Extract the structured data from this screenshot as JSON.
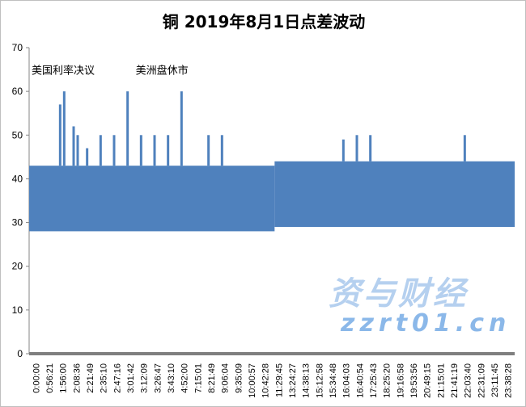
{
  "chart_data": {
    "type": "area",
    "title": "铜 2019年8月1日点差波动",
    "xlabel": "",
    "ylabel": "",
    "ylim": [
      0,
      70
    ],
    "yticks": [
      0,
      10,
      20,
      30,
      40,
      50,
      60,
      70
    ],
    "grid": false,
    "legend": "none",
    "color": "#4f81bd",
    "categories": [
      "0:00:00",
      "0:56:21",
      "1:56:00",
      "2:08:36",
      "2:21:49",
      "2:35:10",
      "2:47:16",
      "3:01:42",
      "3:12:09",
      "3:26:47",
      "3:43:10",
      "4:52:00",
      "7:15:01",
      "8:21:49",
      "9:06:04",
      "9:35:09",
      "10:00:57",
      "10:42:28",
      "11:29:45",
      "13:24:27",
      "14:38:13",
      "15:12:58",
      "15:34:48",
      "16:04:03",
      "16:40:54",
      "17:25:43",
      "18:25:20",
      "19:16:58",
      "19:53:56",
      "20:49:15",
      "21:15:01",
      "21:41:19",
      "22:03:40",
      "22:31:09",
      "23:11:45",
      "23:38:28"
    ],
    "band_segments": [
      {
        "from": "0:00:00",
        "to": "11:29:45",
        "low": 28,
        "high": 43
      },
      {
        "from": "11:29:45",
        "to": "23:38:28",
        "low": 29,
        "high": 44
      }
    ],
    "spikes": [
      {
        "near": "1:56:00",
        "value": 57
      },
      {
        "near": "1:56:00",
        "value": 60
      },
      {
        "near": "2:08:36",
        "value": 52
      },
      {
        "near": "2:08:36",
        "value": 50
      },
      {
        "near": "2:21:49",
        "value": 47
      },
      {
        "near": "2:35:10",
        "value": 50
      },
      {
        "near": "2:47:16",
        "value": 50
      },
      {
        "near": "3:01:42",
        "value": 60
      },
      {
        "near": "3:12:09",
        "value": 50
      },
      {
        "near": "3:26:47",
        "value": 50
      },
      {
        "near": "3:43:10",
        "value": 50
      },
      {
        "near": "4:52:00",
        "value": 60
      },
      {
        "near": "8:21:49",
        "value": 50
      },
      {
        "near": "9:06:04",
        "value": 50
      },
      {
        "near": "16:04:03",
        "value": 49
      },
      {
        "near": "16:40:54",
        "value": 50
      },
      {
        "near": "17:25:43",
        "value": 50
      },
      {
        "near": "22:03:40",
        "value": 50
      }
    ],
    "annotations": [
      {
        "text": "美国利率决议",
        "at": "0:00:00",
        "y": 64
      },
      {
        "text": "美洲盘休市",
        "at": "3:12:09",
        "y": 64
      }
    ]
  },
  "watermark": {
    "brand": "资与财经",
    "site": "zzrt01.cn"
  }
}
